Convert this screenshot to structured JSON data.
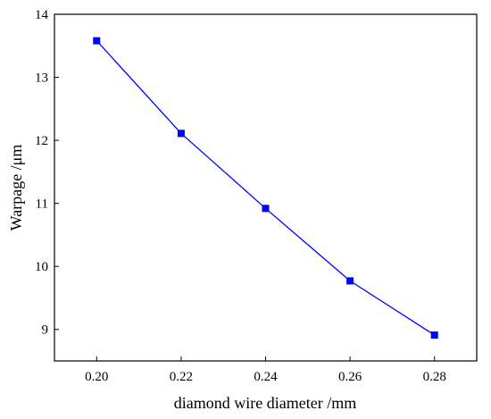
{
  "chart_data": {
    "type": "line",
    "title": "",
    "xlabel": "diamond wire diameter /mm",
    "ylabel": "Warpage /μm",
    "xlim": [
      0.19,
      0.29
    ],
    "ylim": [
      8.5,
      14
    ],
    "xticks": [
      "0.20",
      "0.22",
      "0.24",
      "0.26",
      "0.28"
    ],
    "yticks": [
      "9",
      "10",
      "11",
      "12",
      "13",
      "14"
    ],
    "grid": false,
    "legend": "none",
    "series": [
      {
        "x": [
          0.2,
          0.22,
          0.24,
          0.26,
          0.28
        ],
        "values": [
          13.58,
          12.11,
          10.92,
          9.77,
          8.91
        ],
        "color": "#0000ff",
        "marker": "square"
      }
    ]
  }
}
